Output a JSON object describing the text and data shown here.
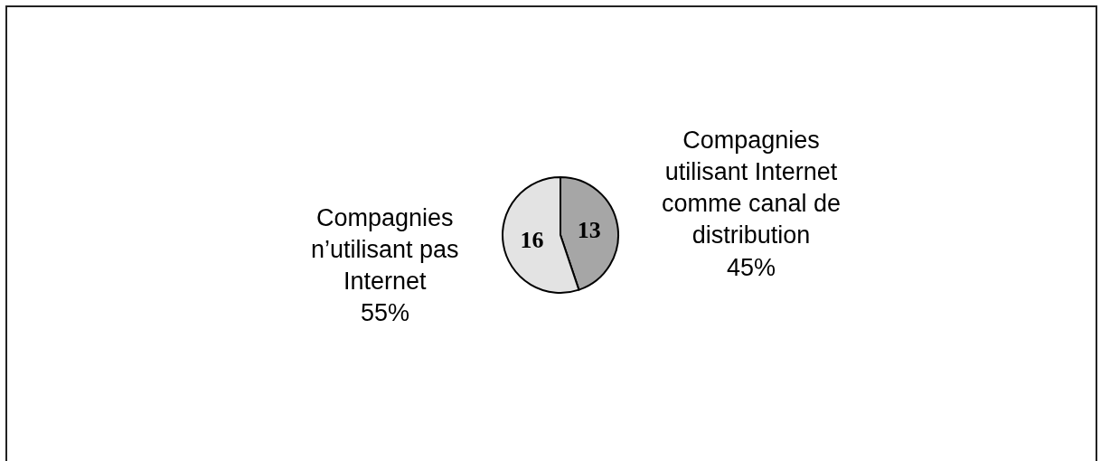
{
  "chart_data": {
    "type": "pie",
    "categories": [
      "Compagnies utilisant Internet comme canal de distribution",
      "Compagnies n’utilisant pas Internet"
    ],
    "values": [
      13,
      16
    ],
    "colors": [
      "#a6a6a6",
      "#e3e3e3"
    ],
    "data_labels": true,
    "annotations": [
      "45%",
      "55%"
    ]
  }
}
